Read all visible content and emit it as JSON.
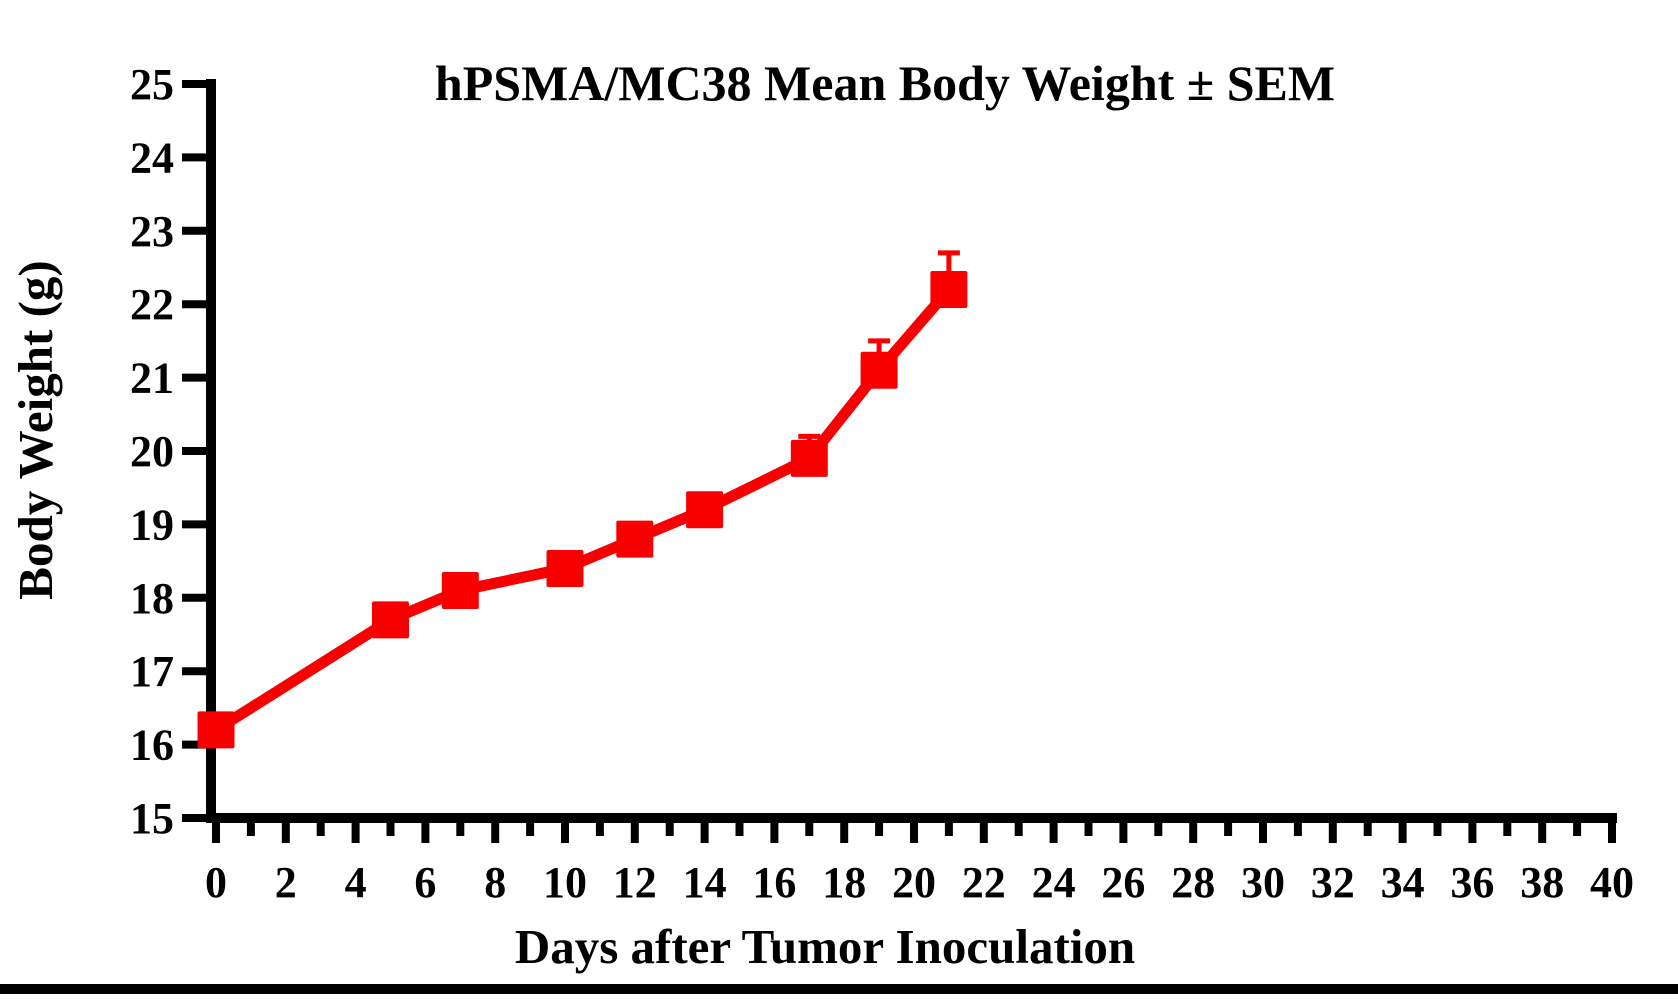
{
  "page": {
    "background": "#FFFFFF",
    "bottom_bar_color": "#000000"
  },
  "chart_data": {
    "type": "line",
    "title": "hPSMA/MC38 Mean Body Weight ± SEM",
    "xlabel": "Days after Tumor Inoculation",
    "ylabel": "Body Weight (g)",
    "xlim": [
      0,
      40
    ],
    "ylim": [
      15,
      25
    ],
    "xticks_major": [
      0,
      2,
      4,
      6,
      8,
      10,
      12,
      14,
      16,
      18,
      20,
      22,
      24,
      26,
      28,
      30,
      32,
      34,
      36,
      38,
      40
    ],
    "xticks_minor": [
      1,
      3,
      5,
      7,
      9,
      11,
      13,
      15,
      17,
      19,
      21,
      23,
      25,
      27,
      29,
      31,
      33,
      35,
      37,
      39
    ],
    "yticks": [
      15,
      16,
      17,
      18,
      19,
      20,
      21,
      22,
      23,
      24,
      25
    ],
    "grid": false,
    "legend": "none",
    "axis_color": "#000000",
    "series": [
      {
        "name": "hPSMA/MC38 mean body weight",
        "color": "#F80000",
        "marker": "square",
        "error_bars": "SEM, upper caps visible on days 17, 19, 21",
        "x": [
          0,
          5,
          7,
          10,
          12,
          14,
          17,
          19,
          21
        ],
        "y": [
          16.2,
          17.7,
          18.1,
          18.4,
          18.8,
          19.2,
          19.9,
          21.1,
          22.2
        ],
        "sem_upper": [
          null,
          null,
          null,
          null,
          null,
          null,
          0.3,
          0.4,
          0.5
        ]
      }
    ]
  }
}
